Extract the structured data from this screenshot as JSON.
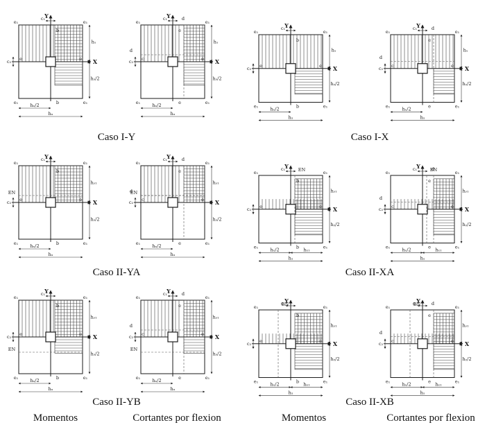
{
  "cases": [
    {
      "id": "I-Y",
      "caption": "Caso I-Y",
      "dir": "Y",
      "sub": "I"
    },
    {
      "id": "I-X",
      "caption": "Caso I-X",
      "dir": "X",
      "sub": "I"
    },
    {
      "id": "II-YA",
      "caption": "Caso II-YA",
      "dir": "Y",
      "sub": "IIA"
    },
    {
      "id": "II-XA",
      "caption": "Caso II-XA",
      "dir": "X",
      "sub": "IIA"
    },
    {
      "id": "II-YB",
      "caption": "Caso II-YB",
      "dir": "Y",
      "sub": "IIB"
    },
    {
      "id": "II-XB",
      "caption": "Caso II-XB",
      "dir": "X",
      "sub": "IIB"
    }
  ],
  "footer": [
    "Momentos",
    "Cortantes por flexion",
    "Momentos",
    "Cortantes por flexion"
  ],
  "labels": {
    "axis_x": "X",
    "axis_y": "Y",
    "corner": "e₁",
    "e": "e",
    "b": "b",
    "c": "c",
    "d": "d",
    "c1": "c₁",
    "c2": "c₂",
    "hx": "hₓ",
    "hy": "hᵧ",
    "hx2": "hₓ/2",
    "hy2": "hᵧ/2",
    "hx1": "hₓ₁",
    "hy1": "hᵧ₁",
    "en": "EN"
  }
}
